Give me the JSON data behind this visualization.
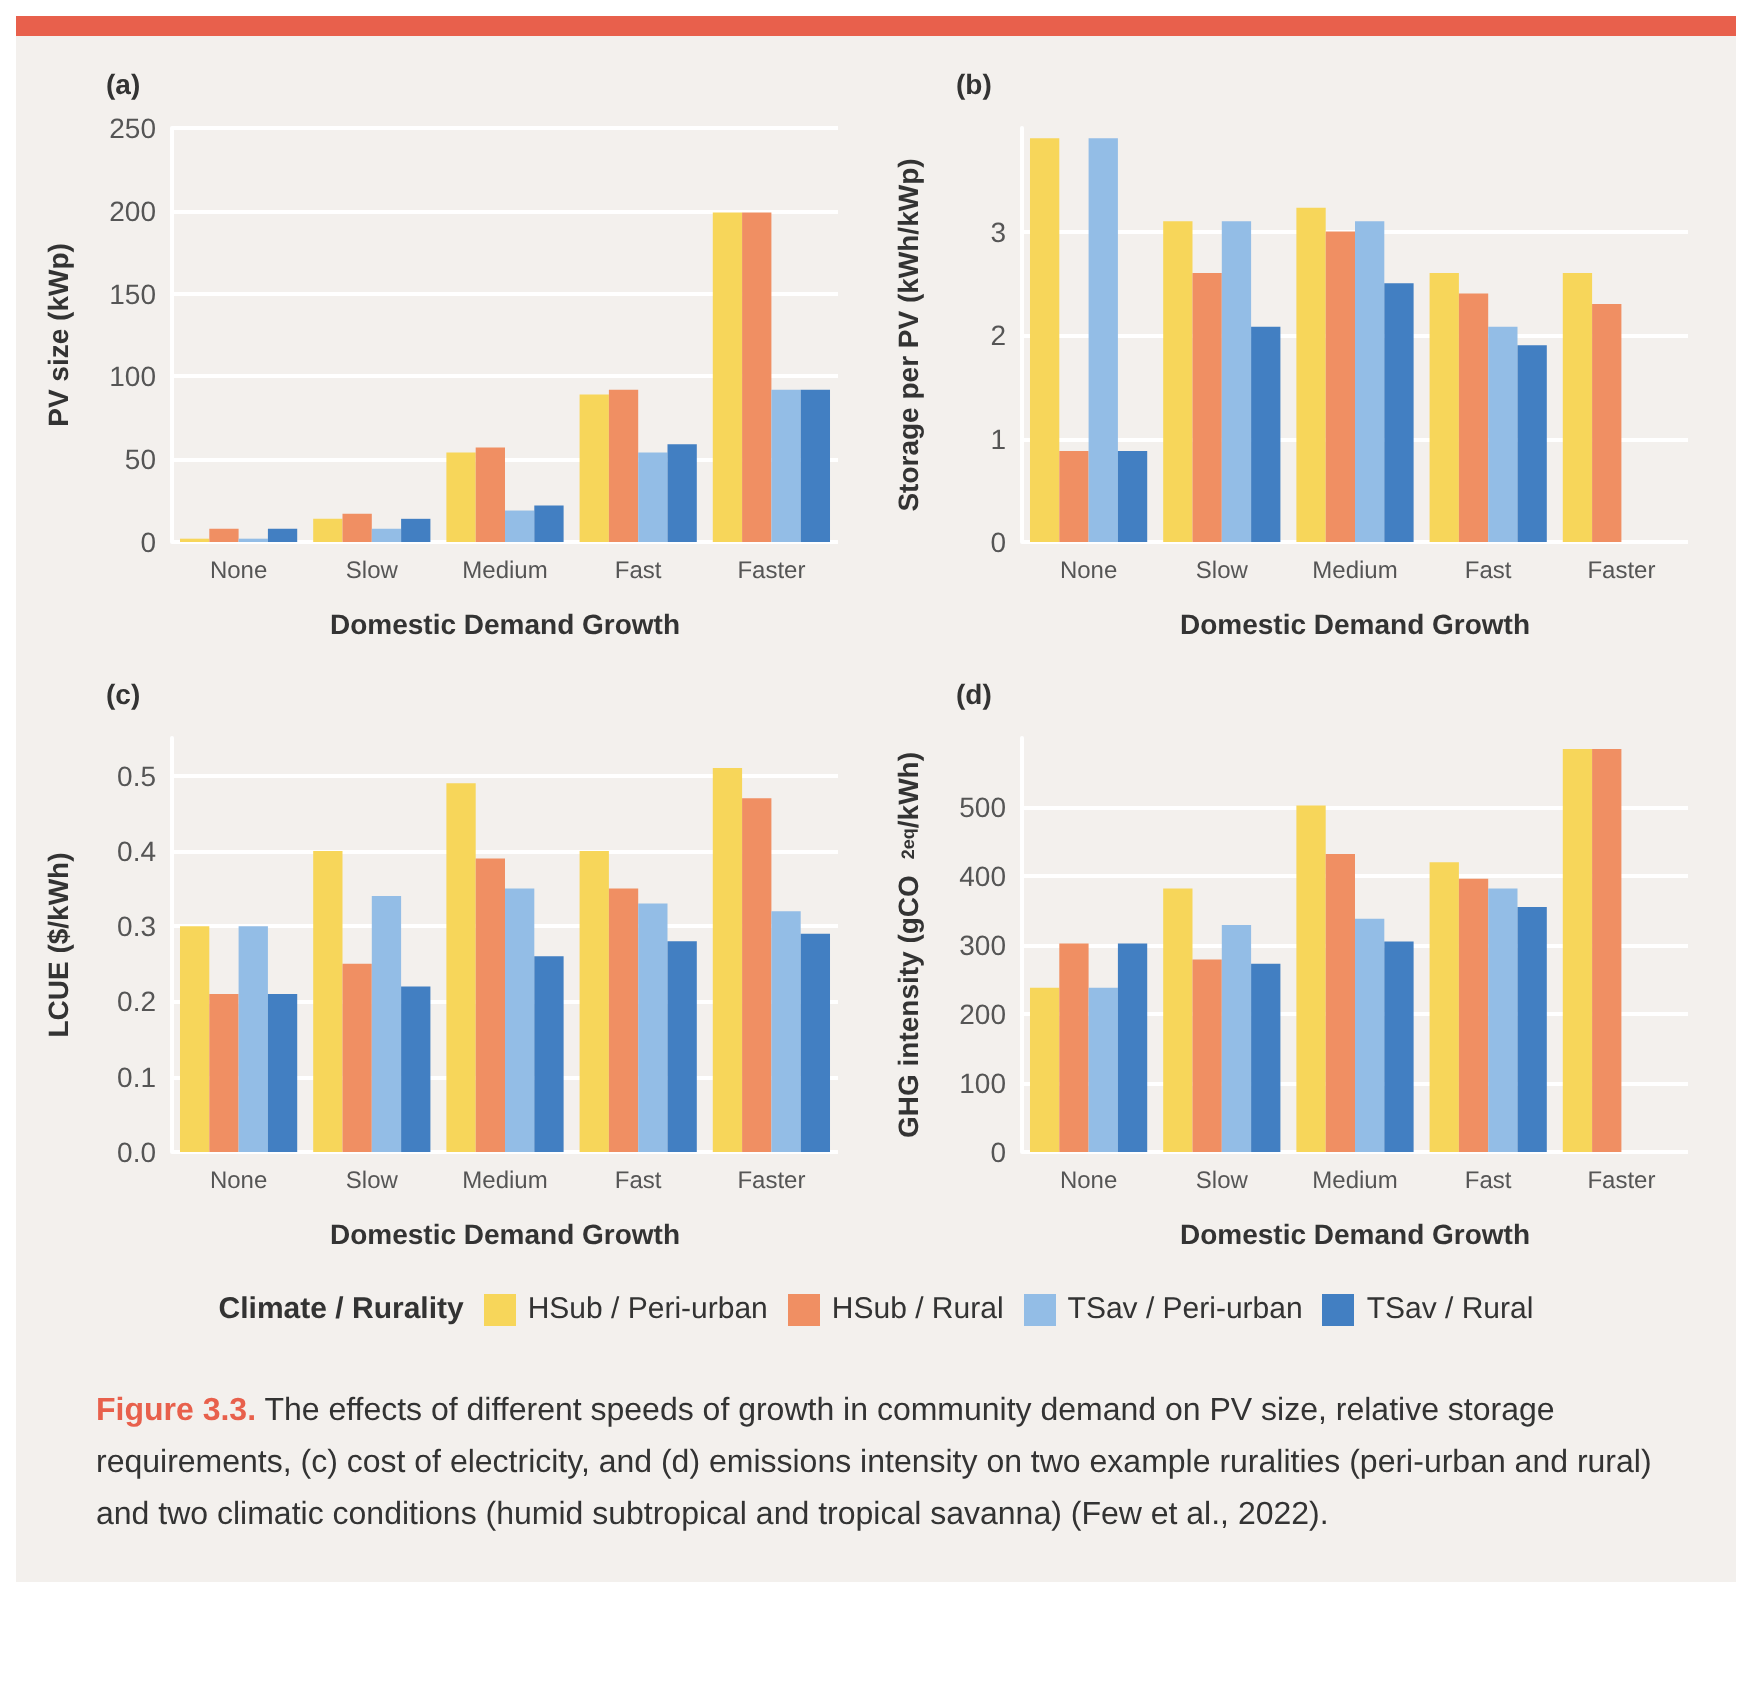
{
  "chart_data": [
    {
      "type": "bar",
      "title": "(a)",
      "xlabel": "Domestic Demand Growth",
      "ylabel": "PV size (kWp)",
      "categories": [
        "None",
        "Slow",
        "Medium",
        "Fast",
        "Faster"
      ],
      "ylim": [
        0,
        250
      ],
      "yticks": [
        0,
        50,
        100,
        150,
        200,
        250
      ],
      "grid": "y",
      "legend": "bottom",
      "legend_title": "Climate / Rurality",
      "series": [
        {
          "name": "HSub / Peri-urban",
          "color": "#f7d65a",
          "values": [
            2,
            14,
            54,
            89,
            199
          ]
        },
        {
          "name": "HSub / Rural",
          "color": "#f08f63",
          "values": [
            8,
            17,
            57,
            92,
            199
          ]
        },
        {
          "name": "TSav / Peri-urban",
          "color": "#93bde6",
          "values": [
            2,
            8,
            19,
            54,
            92
          ]
        },
        {
          "name": "TSav / Rural",
          "color": "#427fc2",
          "values": [
            8,
            14,
            22,
            59,
            92
          ]
        }
      ],
      "annotations": [
        "Figure 3.3.",
        "The effects of different speeds of growth in community demand on PV size, relative storage requirements, (c) cost of electricity, and (d) emissions intensity on two example ruralities (peri-urban and rural) and two climatic conditions (humid subtropical and tropical savanna) (Few et al., 2022)."
      ]
    },
    {
      "type": "bar",
      "title": "(b)",
      "xlabel": "Domestic Demand Growth",
      "ylabel": "Storage per PV (kWh/kWp)",
      "categories": [
        "None",
        "Slow",
        "Medium",
        "Fast",
        "Faster"
      ],
      "ylim": [
        0,
        4
      ],
      "yticks": [
        0,
        1,
        2,
        3
      ],
      "grid": "y",
      "series": [
        {
          "color": "#f7d65a",
          "values": [
            3.9,
            3.1,
            3.23,
            2.6,
            2.6
          ]
        },
        {
          "color": "#f08f63",
          "values": [
            0.88,
            2.6,
            3.0,
            2.4,
            2.3
          ]
        },
        {
          "color": "#93bde6",
          "values": [
            3.9,
            3.1,
            3.1,
            2.08,
            null
          ]
        },
        {
          "color": "#427fc2",
          "values": [
            0.88,
            2.08,
            2.5,
            1.9,
            null
          ]
        }
      ]
    },
    {
      "type": "bar",
      "title": "(c)",
      "xlabel": "Domestic Demand Growth",
      "ylabel": "LCUE ($/kWh)",
      "categories": [
        "None",
        "Slow",
        "Medium",
        "Fast",
        "Faster"
      ],
      "ylim": [
        0,
        0.55
      ],
      "yticks": [
        {
          "value": 0,
          "label": "0.0"
        },
        0.1,
        0.2,
        0.3,
        0.4,
        0.5
      ],
      "grid": "y",
      "series": [
        {
          "color": "#f7d65a",
          "values": [
            0.3,
            0.4,
            0.49,
            0.4,
            0.51
          ]
        },
        {
          "color": "#f08f63",
          "values": [
            0.21,
            0.25,
            0.39,
            0.35,
            0.47
          ]
        },
        {
          "color": "#93bde6",
          "values": [
            0.3,
            0.34,
            0.35,
            0.33,
            0.32
          ]
        },
        {
          "color": "#427fc2",
          "values": [
            0.21,
            0.22,
            0.26,
            0.28,
            0.29
          ]
        }
      ]
    },
    {
      "type": "bar",
      "title": "(d)",
      "xlabel": "Domestic Demand Growth",
      "ylabel": "GHG intensity (gCO$_{2eq}$/kWh)",
      "categories": [
        "None",
        "Slow",
        "Medium",
        "Fast",
        "Faster"
      ],
      "ylim": [
        0,
        600
      ],
      "yticks": [
        0,
        100,
        200,
        300,
        400,
        500
      ],
      "grid": "y",
      "series": [
        {
          "color": "#f7d65a",
          "values": [
            238,
            382,
            502,
            420,
            584
          ]
        },
        {
          "color": "#f08f63",
          "values": [
            302,
            279,
            432,
            396,
            584
          ]
        },
        {
          "color": "#93bde6",
          "values": [
            238,
            329,
            338,
            382,
            null
          ]
        },
        {
          "color": "#427fc2",
          "values": [
            302,
            273,
            305,
            355,
            null
          ]
        }
      ]
    }
  ]
}
